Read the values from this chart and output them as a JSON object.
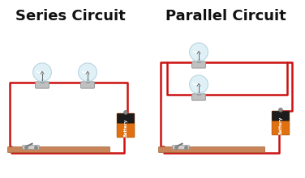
{
  "title_series": "Series Circuit",
  "title_parallel": "Parallel Circuit",
  "title_fontsize": 13,
  "bg_color": "#ffffff",
  "wire_color": "#cc1111",
  "wire_lw": 1.8,
  "board_color": "#c8855a",
  "battery_label": "Battery"
}
